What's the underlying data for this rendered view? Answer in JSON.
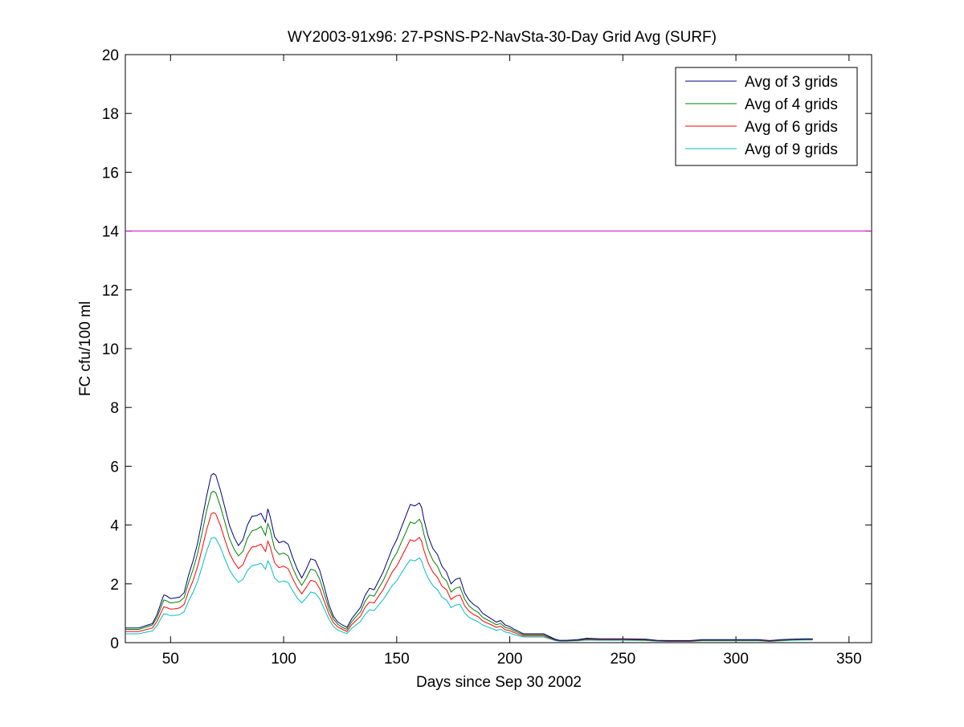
{
  "chart_data": {
    "type": "line",
    "title": "WY2003-91x96: 27-PSNS-P2-NavSta-30-Day Grid Avg (SURF)",
    "xlabel": "Days since Sep 30 2002",
    "ylabel": "FC cfu/100 ml",
    "xlim": [
      30,
      360
    ],
    "ylim": [
      0,
      20
    ],
    "xticks": [
      50,
      100,
      150,
      200,
      250,
      300,
      350
    ],
    "yticks": [
      0,
      2,
      4,
      6,
      8,
      10,
      12,
      14,
      16,
      18,
      20
    ],
    "grid": false,
    "legend_position": "top-right",
    "reference_line": {
      "y": 14,
      "color": "#cc00cc"
    },
    "series": [
      {
        "name": "Avg of 3 grids",
        "color": "#00007f",
        "x": [
          30,
          36,
          38,
          40,
          42,
          44,
          46,
          47,
          48,
          50,
          52,
          54,
          56,
          58,
          60,
          62,
          64,
          66,
          68,
          69,
          70,
          72,
          74,
          76,
          78,
          80,
          82,
          84,
          86,
          88,
          90,
          92,
          93,
          94,
          96,
          98,
          100,
          102,
          104,
          106,
          108,
          110,
          112,
          114,
          116,
          118,
          120,
          122,
          124,
          126,
          128,
          130,
          132,
          134,
          136,
          138,
          140,
          142,
          144,
          146,
          148,
          150,
          152,
          154,
          156,
          158,
          160,
          161,
          162,
          164,
          166,
          168,
          170,
          172,
          174,
          176,
          178,
          180,
          182,
          184,
          186,
          188,
          190,
          192,
          194,
          196,
          198,
          200,
          202,
          204,
          206,
          208,
          210,
          215,
          220,
          222,
          225,
          230,
          234,
          240,
          250,
          260,
          265,
          270,
          280,
          285,
          290,
          300,
          310,
          315,
          320,
          325,
          330,
          334
        ],
        "values": [
          0.5,
          0.5,
          0.55,
          0.6,
          0.65,
          0.95,
          1.4,
          1.62,
          1.6,
          1.5,
          1.52,
          1.55,
          1.7,
          2.3,
          2.8,
          3.4,
          4.2,
          5.0,
          5.7,
          5.75,
          5.7,
          5.2,
          4.6,
          4.0,
          3.6,
          3.3,
          3.5,
          4.0,
          4.3,
          4.32,
          4.4,
          4.1,
          4.55,
          4.3,
          3.6,
          3.4,
          3.45,
          3.35,
          2.9,
          2.5,
          2.2,
          2.5,
          2.85,
          2.8,
          2.45,
          1.9,
          1.3,
          0.9,
          0.7,
          0.6,
          0.52,
          0.8,
          1.0,
          1.2,
          1.6,
          1.85,
          1.8,
          2.1,
          2.4,
          2.8,
          3.2,
          3.5,
          3.9,
          4.3,
          4.7,
          4.65,
          4.75,
          4.6,
          4.2,
          3.6,
          3.2,
          3.0,
          2.6,
          2.4,
          2.0,
          2.15,
          2.2,
          1.7,
          1.45,
          1.3,
          1.2,
          1.0,
          0.9,
          0.8,
          0.7,
          0.75,
          0.6,
          0.55,
          0.45,
          0.38,
          0.3,
          0.3,
          0.3,
          0.3,
          0.12,
          0.08,
          0.08,
          0.1,
          0.15,
          0.13,
          0.13,
          0.12,
          0.08,
          0.07,
          0.07,
          0.1,
          0.1,
          0.1,
          0.1,
          0.07,
          0.1,
          0.12,
          0.13,
          0.13
        ]
      },
      {
        "name": "Avg of 4 grids",
        "color": "#007f00",
        "x": [
          30,
          36,
          38,
          40,
          42,
          44,
          46,
          47,
          48,
          50,
          52,
          54,
          56,
          58,
          60,
          62,
          64,
          66,
          68,
          69,
          70,
          72,
          74,
          76,
          78,
          80,
          82,
          84,
          86,
          88,
          90,
          92,
          93,
          94,
          96,
          98,
          100,
          102,
          104,
          106,
          108,
          110,
          112,
          114,
          116,
          118,
          120,
          122,
          124,
          126,
          128,
          130,
          132,
          134,
          136,
          138,
          140,
          142,
          144,
          146,
          148,
          150,
          152,
          154,
          156,
          158,
          160,
          161,
          162,
          164,
          166,
          168,
          170,
          172,
          174,
          176,
          178,
          180,
          182,
          184,
          186,
          188,
          190,
          192,
          194,
          196,
          198,
          200,
          202,
          204,
          206,
          208,
          210,
          215,
          220,
          222,
          225,
          230,
          234,
          240,
          250,
          260,
          265,
          270,
          280,
          285,
          290,
          300,
          310,
          315,
          320,
          325,
          330,
          334
        ],
        "values": [
          0.45,
          0.45,
          0.5,
          0.55,
          0.6,
          0.85,
          1.25,
          1.45,
          1.43,
          1.35,
          1.37,
          1.4,
          1.53,
          2.05,
          2.5,
          3.05,
          3.75,
          4.5,
          5.1,
          5.15,
          5.1,
          4.65,
          4.1,
          3.55,
          3.2,
          2.95,
          3.1,
          3.55,
          3.8,
          3.85,
          3.95,
          3.65,
          4.05,
          3.85,
          3.2,
          3.0,
          3.05,
          2.95,
          2.55,
          2.2,
          1.95,
          2.2,
          2.5,
          2.45,
          2.15,
          1.65,
          1.15,
          0.8,
          0.62,
          0.52,
          0.45,
          0.7,
          0.88,
          1.05,
          1.4,
          1.62,
          1.58,
          1.85,
          2.1,
          2.45,
          2.8,
          3.05,
          3.4,
          3.75,
          4.1,
          4.05,
          4.2,
          4.05,
          3.7,
          3.15,
          2.8,
          2.6,
          2.25,
          2.1,
          1.72,
          1.85,
          1.9,
          1.48,
          1.25,
          1.12,
          1.03,
          0.86,
          0.78,
          0.7,
          0.61,
          0.65,
          0.52,
          0.48,
          0.4,
          0.33,
          0.27,
          0.27,
          0.27,
          0.27,
          0.1,
          0.07,
          0.07,
          0.09,
          0.13,
          0.12,
          0.12,
          0.1,
          0.07,
          0.06,
          0.06,
          0.09,
          0.09,
          0.09,
          0.09,
          0.06,
          0.09,
          0.11,
          0.12,
          0.12
        ]
      },
      {
        "name": "Avg of 6 grids",
        "color": "#ff0000",
        "x": [
          30,
          36,
          38,
          40,
          42,
          44,
          46,
          47,
          48,
          50,
          52,
          54,
          56,
          58,
          60,
          62,
          64,
          66,
          68,
          69,
          70,
          72,
          74,
          76,
          78,
          80,
          82,
          84,
          86,
          88,
          90,
          92,
          93,
          94,
          96,
          98,
          100,
          102,
          104,
          106,
          108,
          110,
          112,
          114,
          116,
          118,
          120,
          122,
          124,
          126,
          128,
          130,
          132,
          134,
          136,
          138,
          140,
          142,
          144,
          146,
          148,
          150,
          152,
          154,
          156,
          158,
          160,
          161,
          162,
          164,
          166,
          168,
          170,
          172,
          174,
          176,
          178,
          180,
          182,
          184,
          186,
          188,
          190,
          192,
          194,
          196,
          198,
          200,
          202,
          204,
          206,
          208,
          210,
          215,
          220,
          222,
          225,
          230,
          234,
          240,
          250,
          260,
          265,
          270,
          280,
          285,
          290,
          300,
          310,
          315,
          320,
          325,
          330,
          334
        ],
        "values": [
          0.38,
          0.38,
          0.42,
          0.46,
          0.5,
          0.72,
          1.05,
          1.22,
          1.2,
          1.14,
          1.15,
          1.18,
          1.3,
          1.75,
          2.12,
          2.6,
          3.2,
          3.85,
          4.38,
          4.42,
          4.38,
          4.0,
          3.5,
          3.05,
          2.75,
          2.52,
          2.65,
          3.02,
          3.25,
          3.28,
          3.35,
          3.1,
          3.45,
          3.28,
          2.72,
          2.55,
          2.6,
          2.52,
          2.18,
          1.88,
          1.66,
          1.88,
          2.12,
          2.08,
          1.83,
          1.4,
          0.98,
          0.68,
          0.53,
          0.45,
          0.38,
          0.6,
          0.75,
          0.9,
          1.2,
          1.38,
          1.35,
          1.58,
          1.8,
          2.1,
          2.4,
          2.6,
          2.9,
          3.2,
          3.5,
          3.45,
          3.58,
          3.45,
          3.15,
          2.7,
          2.4,
          2.22,
          1.92,
          1.8,
          1.47,
          1.58,
          1.62,
          1.26,
          1.07,
          0.96,
          0.88,
          0.74,
          0.67,
          0.6,
          0.52,
          0.56,
          0.44,
          0.41,
          0.34,
          0.28,
          0.23,
          0.23,
          0.23,
          0.23,
          0.09,
          0.06,
          0.06,
          0.08,
          0.11,
          0.1,
          0.1,
          0.09,
          0.06,
          0.05,
          0.05,
          0.08,
          0.08,
          0.08,
          0.08,
          0.05,
          0.08,
          0.1,
          0.11,
          0.11
        ]
      },
      {
        "name": "Avg of 9 grids",
        "color": "#00bfbf",
        "x": [
          30,
          36,
          38,
          40,
          42,
          44,
          46,
          47,
          48,
          50,
          52,
          54,
          56,
          58,
          60,
          62,
          64,
          66,
          68,
          69,
          70,
          72,
          74,
          76,
          78,
          80,
          82,
          84,
          86,
          88,
          90,
          92,
          93,
          94,
          96,
          98,
          100,
          102,
          104,
          106,
          108,
          110,
          112,
          114,
          116,
          118,
          120,
          122,
          124,
          126,
          128,
          130,
          132,
          134,
          136,
          138,
          140,
          142,
          144,
          146,
          148,
          150,
          152,
          154,
          156,
          158,
          160,
          161,
          162,
          164,
          166,
          168,
          170,
          172,
          174,
          176,
          178,
          180,
          182,
          184,
          186,
          188,
          190,
          192,
          194,
          196,
          198,
          200,
          202,
          204,
          206,
          208,
          210,
          215,
          220,
          222,
          225,
          230,
          234,
          240,
          250,
          260,
          265,
          270,
          280,
          285,
          290,
          300,
          310,
          315,
          320,
          325,
          330,
          334
        ],
        "values": [
          0.3,
          0.3,
          0.34,
          0.37,
          0.4,
          0.58,
          0.85,
          0.98,
          0.97,
          0.92,
          0.93,
          0.95,
          1.05,
          1.42,
          1.72,
          2.1,
          2.6,
          3.12,
          3.55,
          3.58,
          3.55,
          3.25,
          2.85,
          2.48,
          2.24,
          2.05,
          2.15,
          2.45,
          2.62,
          2.65,
          2.7,
          2.5,
          2.78,
          2.65,
          2.2,
          2.06,
          2.1,
          2.04,
          1.77,
          1.52,
          1.35,
          1.52,
          1.72,
          1.68,
          1.48,
          1.14,
          0.8,
          0.55,
          0.43,
          0.36,
          0.31,
          0.48,
          0.6,
          0.72,
          0.96,
          1.12,
          1.09,
          1.28,
          1.46,
          1.7,
          1.94,
          2.1,
          2.35,
          2.6,
          2.82,
          2.78,
          2.88,
          2.78,
          2.54,
          2.18,
          1.94,
          1.8,
          1.55,
          1.45,
          1.19,
          1.28,
          1.3,
          1.02,
          0.86,
          0.78,
          0.71,
          0.6,
          0.54,
          0.48,
          0.42,
          0.45,
          0.36,
          0.33,
          0.27,
          0.23,
          0.19,
          0.19,
          0.19,
          0.19,
          0.07,
          0.05,
          0.05,
          0.06,
          0.09,
          0.08,
          0.08,
          0.07,
          0.05,
          0.04,
          0.04,
          0.06,
          0.06,
          0.06,
          0.06,
          0.04,
          0.06,
          0.08,
          0.09,
          0.09
        ]
      }
    ]
  }
}
